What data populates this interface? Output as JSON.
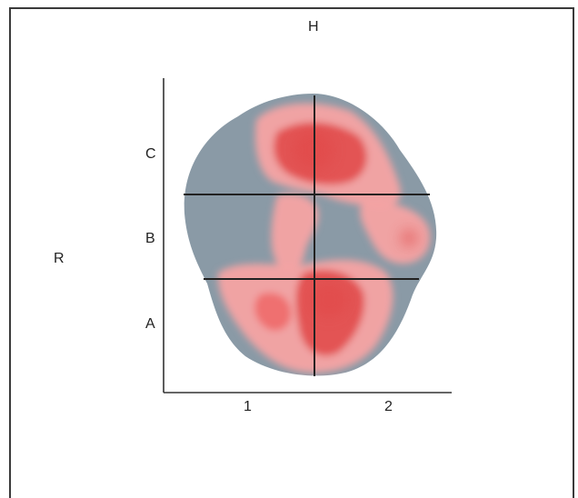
{
  "orientation_labels": {
    "top": "H",
    "left": "R"
  },
  "row_labels": [
    "C",
    "B",
    "A"
  ],
  "column_labels": [
    "1",
    "2"
  ],
  "colors": {
    "tissue_gray": "#8a9aa6",
    "tissue_gray_light": "#a3b0ba",
    "stain_red": "#ef6f6f",
    "stain_red_dark": "#e04545",
    "stain_red_light": "#f5a3a3",
    "axis_line": "#333333",
    "grid_line": "#222222"
  }
}
